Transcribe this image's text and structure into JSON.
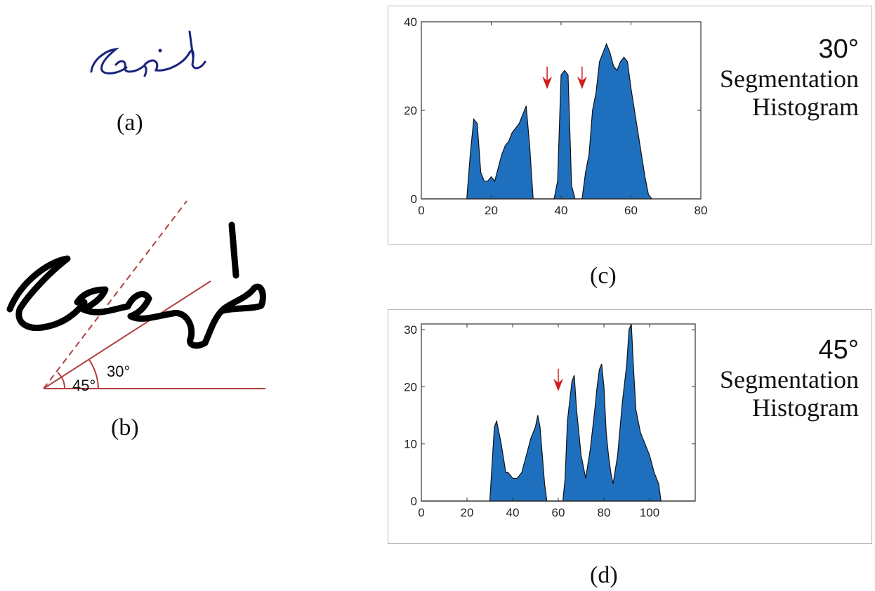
{
  "figure": {
    "captions": {
      "a": "(a)",
      "b": "(b)",
      "c": "(c)",
      "d": "(d)"
    },
    "panel_b": {
      "angle_small": "30°",
      "angle_large": "45°"
    },
    "panel_c_label": {
      "angle": "30°",
      "line1": "Segmentation",
      "line2": "Histogram"
    },
    "panel_d_label": {
      "angle": "45°",
      "line1": "Segmentation",
      "line2": "Histogram"
    },
    "colors": {
      "fill": "#1f6fbf",
      "arrow": "#d01e1e",
      "ink": "#1a237e",
      "guide": "#b04040"
    }
  },
  "chart_data": [
    {
      "id": "c",
      "type": "area",
      "title": "30° Segmentation Histogram",
      "xlabel": "",
      "ylabel": "",
      "xlim": [
        0,
        80
      ],
      "ylim": [
        0,
        40
      ],
      "xticks": [
        0,
        20,
        40,
        60,
        80
      ],
      "yticks": [
        0,
        20,
        40
      ],
      "x": [
        13,
        14,
        15,
        16,
        17,
        18,
        19,
        20,
        21,
        22,
        23,
        24,
        25,
        26,
        27,
        28,
        29,
        30,
        31,
        32,
        33,
        34,
        35,
        36,
        37,
        38,
        39,
        40,
        41,
        42,
        43,
        44,
        45,
        46,
        47,
        48,
        49,
        50,
        51,
        52,
        53,
        54,
        55,
        56,
        57,
        58,
        59,
        60,
        61,
        62,
        63,
        64,
        65,
        66
      ],
      "values": [
        0,
        10,
        18,
        17,
        6,
        4,
        4,
        5,
        4,
        7,
        10,
        12,
        13,
        15,
        16,
        17,
        19,
        21,
        12,
        0,
        0,
        0,
        0,
        0,
        0,
        0,
        4,
        28,
        29,
        28,
        3,
        0,
        0,
        0,
        6,
        10,
        20,
        24,
        31,
        33,
        35,
        33,
        30,
        29,
        31,
        32,
        31,
        25,
        20,
        15,
        10,
        5,
        1,
        0
      ],
      "arrows_at_x": [
        36,
        46
      ]
    },
    {
      "id": "d",
      "type": "area",
      "title": "45° Segmentation Histogram",
      "xlabel": "",
      "ylabel": "",
      "xlim": [
        0,
        120
      ],
      "ylim": [
        0,
        31
      ],
      "xticks": [
        0,
        20,
        40,
        60,
        80,
        100
      ],
      "yticks": [
        0,
        10,
        20,
        30
      ],
      "x": [
        30,
        32,
        33,
        35,
        37,
        38,
        40,
        42,
        44,
        46,
        48,
        50,
        51,
        52,
        53,
        54,
        55,
        56,
        57,
        58,
        59,
        60,
        61,
        62,
        63,
        64,
        66,
        67,
        68,
        70,
        72,
        74,
        76,
        77,
        78,
        79,
        80,
        81,
        82,
        83,
        84,
        86,
        88,
        90,
        91,
        92,
        93,
        94,
        96,
        98,
        100,
        102,
        104,
        105
      ],
      "values": [
        0,
        13,
        14,
        10,
        5,
        5,
        4,
        4,
        5,
        8,
        11,
        13,
        15,
        13,
        8,
        3,
        0,
        0,
        0,
        0,
        0,
        0,
        0,
        0,
        4,
        14,
        21,
        22,
        16,
        8,
        4,
        9,
        16,
        20,
        23,
        24,
        20,
        12,
        8,
        5,
        3,
        8,
        17,
        24,
        30,
        31,
        23,
        16,
        12,
        10,
        8,
        5,
        3,
        0
      ],
      "arrows_at_x": [
        60
      ]
    }
  ]
}
